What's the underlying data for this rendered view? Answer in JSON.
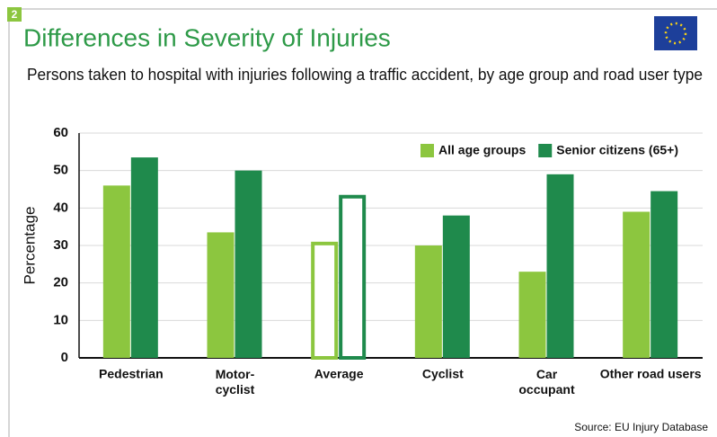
{
  "chart_data": {
    "type": "bar",
    "badge": "2",
    "title": "Differences in Severity of Injuries",
    "subtitle": "Persons taken to hospital with injuries following a traffic accident, by age group and road user type",
    "y_label": "Percentage",
    "source": "Source: EU Injury Database",
    "categories": [
      "Pedestrian",
      "Motor-\ncyclist",
      "Average",
      "Cyclist",
      "Car\noccupant",
      "Other road users"
    ],
    "series": [
      {
        "name": "All age groups",
        "color": "#8cc63f",
        "values": [
          46,
          33.5,
          31,
          30,
          23,
          39
        ]
      },
      {
        "name": "Senior citizens (65+)",
        "color": "#1f8a4c",
        "values": [
          53.5,
          50,
          43.5,
          38,
          49,
          44.5
        ]
      }
    ],
    "outlined_category_index": 2,
    "ylim": [
      0,
      60
    ],
    "yticks": [
      0,
      10,
      20,
      30,
      40,
      50,
      60
    ],
    "grid": true,
    "legend": "top-right"
  }
}
